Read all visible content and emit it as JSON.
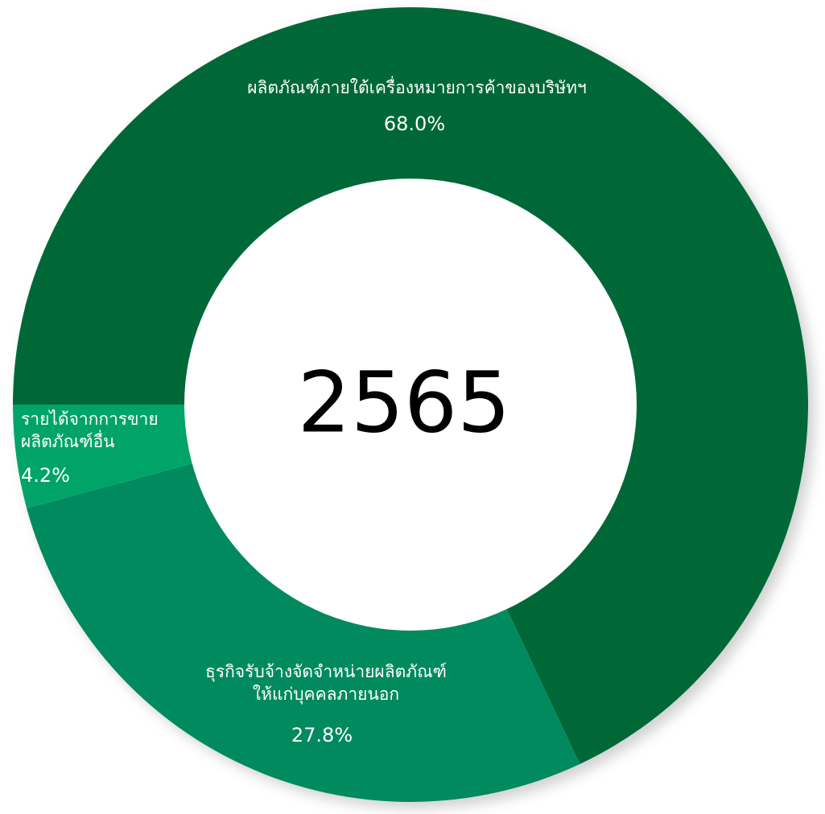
{
  "chart_data": {
    "type": "donut",
    "center_label": "2565",
    "labels": [
      [
        "ผลิตภัณฑ์ภายใต้เครื่องหมายการค้าของบริษัทฯ"
      ],
      [
        "ธุรกิจรับจ้างจัดจำหน่ายผลิตภัณฑ์",
        "ให้แก่บุคคลภายนอก"
      ],
      [
        "รายได้จากการขาย",
        "ผลิตภัณฑ์อื่น"
      ]
    ],
    "values": [
      68.0,
      27.8,
      4.2
    ],
    "value_labels": [
      "68.0%",
      "27.8%",
      "4.2%"
    ],
    "colors": [
      "#006837",
      "#008a5e",
      "#00a469"
    ]
  }
}
